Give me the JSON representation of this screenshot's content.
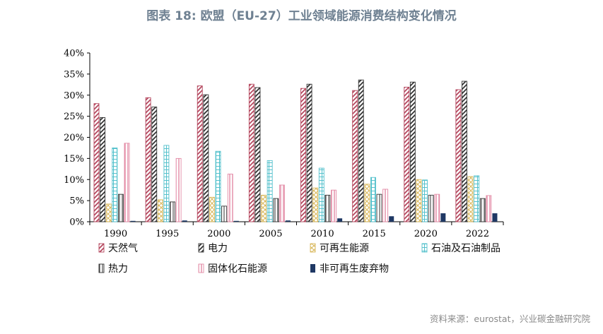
{
  "title": "图表 18: 欧盟（EU-27）工业领域能源消费结构变化情况",
  "source": "资料来源：eurostat，兴业碳金融研究院",
  "chart_data": {
    "type": "bar",
    "categories": [
      "1990",
      "1995",
      "2000",
      "2005",
      "2010",
      "2015",
      "2020",
      "2022"
    ],
    "ylim": [
      0,
      40
    ],
    "yticks": [
      0,
      5,
      10,
      15,
      20,
      25,
      30,
      35,
      40
    ],
    "ytick_labels": [
      "0%",
      "5%",
      "10%",
      "15%",
      "20%",
      "25%",
      "30%",
      "35%",
      "40%"
    ],
    "unit": "%",
    "legend_position": "bottom",
    "grid": false,
    "series": [
      {
        "name": "天然气",
        "color": "#b5485f",
        "pattern": "diag-up",
        "values": [
          28.0,
          29.4,
          32.2,
          32.6,
          31.6,
          31.1,
          31.9,
          31.3
        ]
      },
      {
        "name": "电力",
        "color": "#333333",
        "pattern": "diag-up",
        "values": [
          24.7,
          27.2,
          30.1,
          31.8,
          32.6,
          33.6,
          33.1,
          33.3
        ]
      },
      {
        "name": "可再生能源",
        "color": "#d9b85c",
        "pattern": "crosshatch",
        "values": [
          4.2,
          5.2,
          5.8,
          6.3,
          8.0,
          8.9,
          10.0,
          10.7
        ]
      },
      {
        "name": "石油及石油制品",
        "color": "#54c1cc",
        "pattern": "grid",
        "values": [
          17.5,
          18.1,
          16.7,
          14.5,
          12.7,
          10.5,
          9.9,
          10.9
        ]
      },
      {
        "name": "热力",
        "color": "#333333",
        "pattern": "vlines",
        "values": [
          6.5,
          4.7,
          3.7,
          5.5,
          6.3,
          6.5,
          6.3,
          5.5
        ]
      },
      {
        "name": "固体化石能源",
        "color": "#e38aa5",
        "pattern": "vlines",
        "values": [
          18.6,
          15.0,
          11.3,
          8.7,
          7.5,
          7.7,
          6.5,
          6.2
        ]
      },
      {
        "name": "非可再生废弃物",
        "color": "#1f3864",
        "pattern": "solid",
        "values": [
          0.2,
          0.3,
          0.2,
          0.3,
          0.8,
          1.3,
          2.0,
          2.0
        ]
      }
    ]
  }
}
